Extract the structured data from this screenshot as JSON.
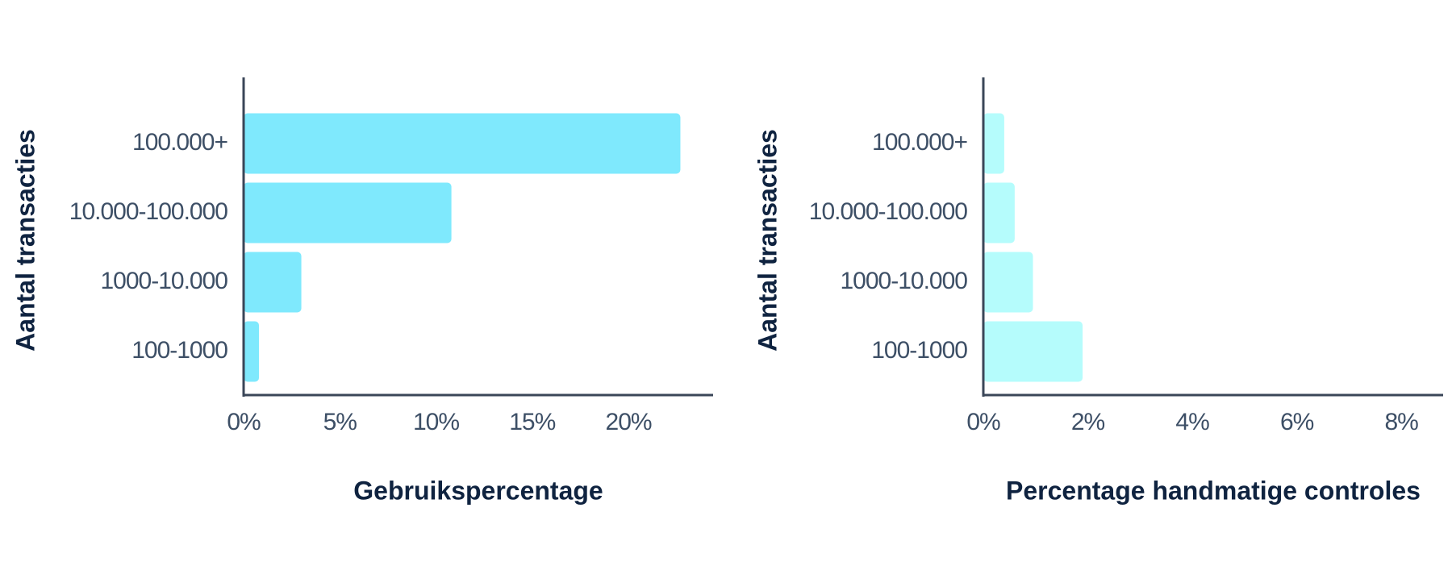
{
  "chart_data": [
    {
      "type": "bar",
      "orientation": "horizontal",
      "ylabel": "Aantal transacties",
      "xlabel": "Gebruikspercentage",
      "categories": [
        "100.000+",
        "10.000-100.000",
        "1000-10.000",
        "100-1000"
      ],
      "values": [
        22.7,
        10.8,
        3.0,
        0.8
      ],
      "color": "#7fe9fd",
      "xlim": [
        0,
        24.4
      ],
      "xticks": [
        {
          "value": 0,
          "label": "0%"
        },
        {
          "value": 5,
          "label": "5%"
        },
        {
          "value": 10,
          "label": "10%"
        },
        {
          "value": 15,
          "label": "15%"
        },
        {
          "value": 20,
          "label": "20%"
        }
      ]
    },
    {
      "type": "bar",
      "orientation": "horizontal",
      "ylabel": "Aantal transacties",
      "xlabel": "Percentage handmatige controles",
      "categories": [
        "100.000+",
        "10.000-100.000",
        "1000-10.000",
        "100-1000"
      ],
      "values": [
        0.4,
        0.6,
        0.95,
        1.9
      ],
      "color": "#b5fcfc",
      "xlim": [
        0,
        8.8
      ],
      "xticks": [
        {
          "value": 0,
          "label": "0%"
        },
        {
          "value": 2,
          "label": "2%"
        },
        {
          "value": 4,
          "label": "4%"
        },
        {
          "value": 6,
          "label": "6%"
        },
        {
          "value": 8,
          "label": "8%"
        }
      ]
    }
  ]
}
